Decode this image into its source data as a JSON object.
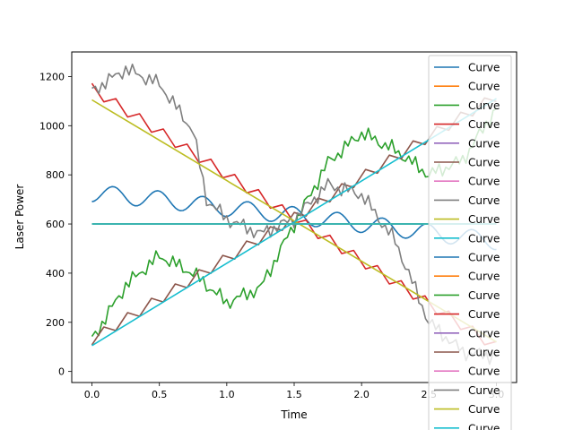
{
  "chart_data": {
    "type": "line",
    "title": "",
    "xlabel": "Time",
    "ylabel": "Laser Power",
    "xlim": [
      -0.15,
      3.15
    ],
    "ylim": [
      -45,
      1300
    ],
    "x_ticks": [
      0.0,
      0.5,
      1.0,
      1.5,
      2.0,
      2.5,
      3.0
    ],
    "x_tick_labels": [
      "0.0",
      "0.5",
      "1.0",
      "1.5",
      "2.0",
      "2.5",
      "3.0"
    ],
    "y_ticks": [
      0,
      200,
      400,
      600,
      800,
      1000,
      1200
    ],
    "y_tick_labels": [
      "0",
      "200",
      "400",
      "600",
      "800",
      "1000",
      "1200"
    ],
    "grid": false,
    "legend_position": "upper-right",
    "series": [
      {
        "name": "Curve",
        "color": "#1f77b4",
        "kind": "wave",
        "x": [
          0.0,
          0.5,
          1.0,
          1.5,
          2.0,
          2.5,
          3.0
        ],
        "y": [
          725,
          700,
          665,
          635,
          600,
          565,
          530
        ]
      },
      {
        "name": "Curve",
        "color": "#ff7f0e",
        "kind": "flat",
        "x": [
          0.0,
          3.0
        ],
        "y": [
          600,
          600
        ]
      },
      {
        "name": "Curve",
        "color": "#2ca02c",
        "kind": "rise",
        "x": [
          0.0,
          0.25,
          0.5,
          0.75,
          1.0,
          1.25,
          1.5,
          1.75,
          2.0,
          2.25,
          2.5,
          2.75,
          3.0
        ],
        "y": [
          130,
          350,
          470,
          400,
          280,
          340,
          600,
          850,
          970,
          900,
          800,
          860,
          1070
        ]
      },
      {
        "name": "Curve",
        "color": "#d62728",
        "kind": "step-down",
        "x": [
          0.0,
          3.0
        ],
        "y": [
          1150,
          100
        ]
      },
      {
        "name": "Curve",
        "color": "#9467bd",
        "kind": "flat",
        "x": [
          0.0,
          3.0
        ],
        "y": [
          600,
          600
        ]
      },
      {
        "name": "Curve",
        "color": "#8c564b",
        "kind": "step-up",
        "x": [
          0.0,
          3.0
        ],
        "y": [
          130,
          1120
        ]
      },
      {
        "name": "Curve",
        "color": "#e377c2",
        "kind": "flat",
        "x": [
          0.0,
          3.0
        ],
        "y": [
          600,
          600
        ]
      },
      {
        "name": "Curve",
        "color": "#7f7f7f",
        "kind": "fall",
        "x": [
          0.0,
          0.25,
          0.5,
          0.75,
          0.85,
          1.0,
          1.25,
          1.5,
          1.75,
          2.0,
          2.25,
          2.5,
          2.75,
          3.0
        ],
        "y": [
          1140,
          1230,
          1170,
          980,
          700,
          620,
          560,
          620,
          760,
          720,
          530,
          200,
          80,
          60
        ]
      },
      {
        "name": "Curve",
        "color": "#bcbd22",
        "kind": "line",
        "x": [
          0.0,
          3.0
        ],
        "y": [
          1105,
          120
        ]
      },
      {
        "name": "Curve",
        "color": "#17becf",
        "kind": "line",
        "x": [
          0.0,
          3.0
        ],
        "y": [
          105,
          1110
        ]
      },
      {
        "name": "Curve",
        "color": "#1f77b4",
        "kind": "flat",
        "x": [
          0.0,
          3.0
        ],
        "y": [
          600,
          600
        ]
      },
      {
        "name": "Curve",
        "color": "#ff7f0e",
        "kind": "flat",
        "x": [
          0.0,
          3.0
        ],
        "y": [
          600,
          600
        ]
      },
      {
        "name": "Curve",
        "color": "#2ca02c",
        "kind": "flat",
        "x": [
          0.0,
          3.0
        ],
        "y": [
          600,
          600
        ]
      },
      {
        "name": "Curve",
        "color": "#d62728",
        "kind": "flat",
        "x": [
          0.0,
          3.0
        ],
        "y": [
          600,
          600
        ]
      },
      {
        "name": "Curve",
        "color": "#9467bd",
        "kind": "flat",
        "x": [
          0.0,
          3.0
        ],
        "y": [
          600,
          600
        ]
      },
      {
        "name": "Curve",
        "color": "#8c564b",
        "kind": "flat",
        "x": [
          0.0,
          3.0
        ],
        "y": [
          600,
          600
        ]
      },
      {
        "name": "Curve",
        "color": "#e377c2",
        "kind": "flat",
        "x": [
          0.0,
          3.0
        ],
        "y": [
          600,
          600
        ]
      },
      {
        "name": "Curve",
        "color": "#7f7f7f",
        "kind": "flat",
        "x": [
          0.0,
          3.0
        ],
        "y": [
          600,
          600
        ]
      },
      {
        "name": "Curve",
        "color": "#bcbd22",
        "kind": "flat",
        "x": [
          0.0,
          3.0
        ],
        "y": [
          600,
          600
        ]
      },
      {
        "name": "Curve",
        "color": "#17becf",
        "kind": "flat",
        "x": [
          0.0,
          3.0
        ],
        "y": [
          600,
          600
        ]
      }
    ]
  }
}
